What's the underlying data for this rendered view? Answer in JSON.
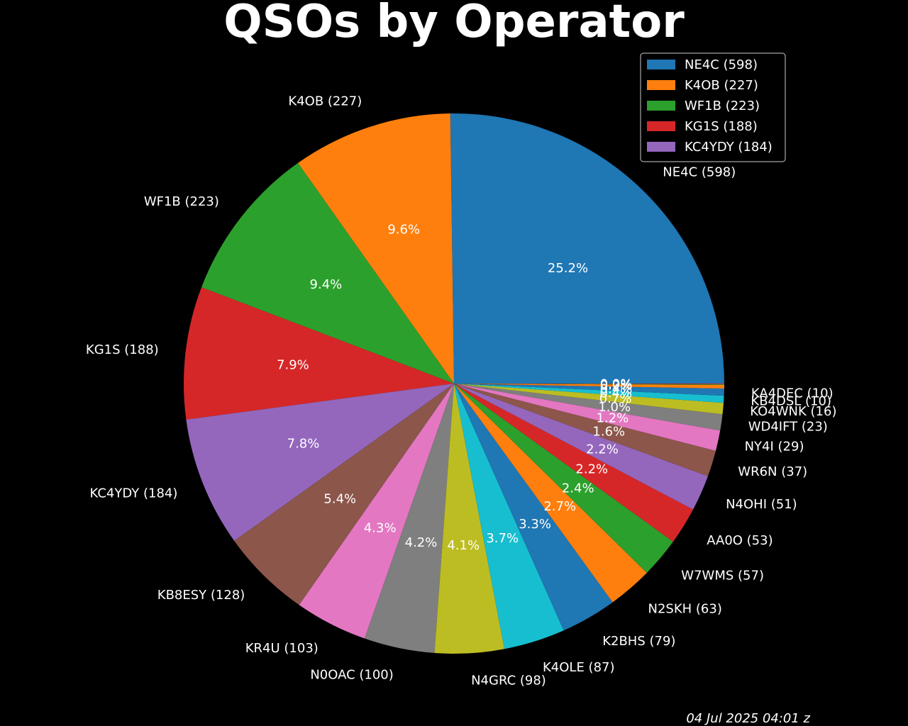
{
  "chart_data": {
    "type": "pie",
    "title": "QSOs by Operator",
    "timestamp": "04 Jul 2025 04:01 z",
    "start_angle_deg": 0,
    "direction": "counterclockwise",
    "legend_position": "top-right",
    "legend_count": 5,
    "colors": [
      "#1f77b4",
      "#ff7f0e",
      "#2ca02c",
      "#d62728",
      "#9467bd",
      "#8c564b",
      "#e377c2",
      "#7f7f7f",
      "#bcbd22",
      "#17becf"
    ],
    "slices": [
      {
        "operator": "NE4C",
        "value": 598,
        "label": "NE4C (598)",
        "pct": "25.2%"
      },
      {
        "operator": "K4OB",
        "value": 227,
        "label": "K4OB (227)",
        "pct": "9.6%"
      },
      {
        "operator": "WF1B",
        "value": 223,
        "label": "WF1B (223)",
        "pct": "9.4%"
      },
      {
        "operator": "KG1S",
        "value": 188,
        "label": "KG1S (188)",
        "pct": "7.9%"
      },
      {
        "operator": "KC4YDY",
        "value": 184,
        "label": "KC4YDY (184)",
        "pct": "7.8%"
      },
      {
        "operator": "KB8ESY",
        "value": 128,
        "label": "KB8ESY (128)",
        "pct": "5.4%"
      },
      {
        "operator": "KR4U",
        "value": 103,
        "label": "KR4U (103)",
        "pct": "4.3%"
      },
      {
        "operator": "N0OAC",
        "value": 100,
        "label": "N0OAC (100)",
        "pct": "4.2%"
      },
      {
        "operator": "N4GRC",
        "value": 98,
        "label": "N4GRC (98)",
        "pct": "4.1%"
      },
      {
        "operator": "K4OLE",
        "value": 87,
        "label": "K4OLE (87)",
        "pct": "3.7%"
      },
      {
        "operator": "K2BHS",
        "value": 79,
        "label": "K2BHS (79)",
        "pct": "3.3%"
      },
      {
        "operator": "N2SKH",
        "value": 63,
        "label": "N2SKH (63)",
        "pct": "2.7%"
      },
      {
        "operator": "W7WMS",
        "value": 57,
        "label": "W7WMS (57)",
        "pct": "2.4%"
      },
      {
        "operator": "AA0O",
        "value": 53,
        "label": "AA0O (53)",
        "pct": "2.2%"
      },
      {
        "operator": "N4OHI",
        "value": 51,
        "label": "N4OHI (51)",
        "pct": "2.2%"
      },
      {
        "operator": "WR6N",
        "value": 37,
        "label": "WR6N (37)",
        "pct": "1.6%"
      },
      {
        "operator": "NY4I",
        "value": 29,
        "label": "NY4I (29)",
        "pct": "1.2%"
      },
      {
        "operator": "WD4IFT",
        "value": 23,
        "label": "WD4IFT (23)",
        "pct": "1.0%"
      },
      {
        "operator": "KO4WNK",
        "value": 16,
        "label": "KO4WNK (16)",
        "pct": "0.7%"
      },
      {
        "operator": "KB4DSL",
        "value": 10,
        "label": "KB4DSL (10)",
        "pct": "0.4%"
      },
      {
        "operator": "KA4DEC",
        "value": 10,
        "label": "KA4DEC (10)",
        "pct": "0.4%"
      },
      {
        "operator": "",
        "value": 5,
        "label": "",
        "pct": "0.2%"
      },
      {
        "operator": "",
        "value": 1,
        "label": "",
        "pct": "0.0%"
      },
      {
        "operator": "",
        "value": 1,
        "label": "",
        "pct": "0.0%"
      }
    ]
  }
}
